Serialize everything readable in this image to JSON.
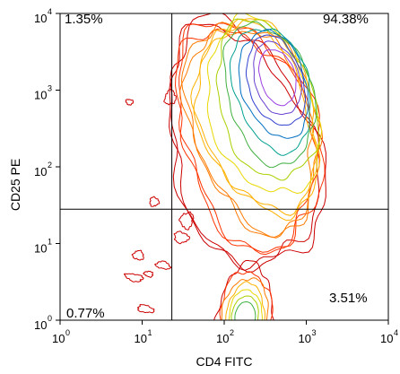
{
  "chart_data": {
    "type": "contour",
    "xlabel": "CD4 FITC",
    "ylabel": "CD25 PE",
    "x_scale": "log",
    "y_scale": "log",
    "xlim": [
      1,
      10000
    ],
    "ylim": [
      1,
      10000
    ],
    "x_ticks": [
      {
        "base": "10",
        "exp": "0",
        "value": 1
      },
      {
        "base": "10",
        "exp": "1",
        "value": 10
      },
      {
        "base": "10",
        "exp": "2",
        "value": 100
      },
      {
        "base": "10",
        "exp": "3",
        "value": 1000
      },
      {
        "base": "10",
        "exp": "4",
        "value": 10000
      }
    ],
    "y_ticks": [
      {
        "base": "10",
        "exp": "0",
        "value": 1
      },
      {
        "base": "10",
        "exp": "1",
        "value": 10
      },
      {
        "base": "10",
        "exp": "2",
        "value": 100
      },
      {
        "base": "10",
        "exp": "3",
        "value": 1000
      },
      {
        "base": "10",
        "exp": "4",
        "value": 10000
      }
    ],
    "gates": {
      "x": 23,
      "y": 28
    },
    "quadrants": [
      {
        "name": "upper-left",
        "label": "1.35%",
        "value": 1.35
      },
      {
        "name": "upper-right",
        "label": "94.38%",
        "value": 94.38
      },
      {
        "name": "lower-left",
        "label": "0.77%",
        "value": 0.77
      },
      {
        "name": "lower-right",
        "label": "3.51%",
        "value": 3.51
      }
    ],
    "populations": [
      {
        "name": "main",
        "center": [
          450,
          1500
        ]
      },
      {
        "name": "lower",
        "center": [
          180,
          1.1
        ]
      }
    ],
    "colors": [
      "#cc0000",
      "#ff3300",
      "#ff7a00",
      "#ffb000",
      "#e8d800",
      "#a8d000",
      "#40b040",
      "#00a090",
      "#0070c0",
      "#3040d0",
      "#6a3fd0",
      "#9a40e0"
    ]
  }
}
